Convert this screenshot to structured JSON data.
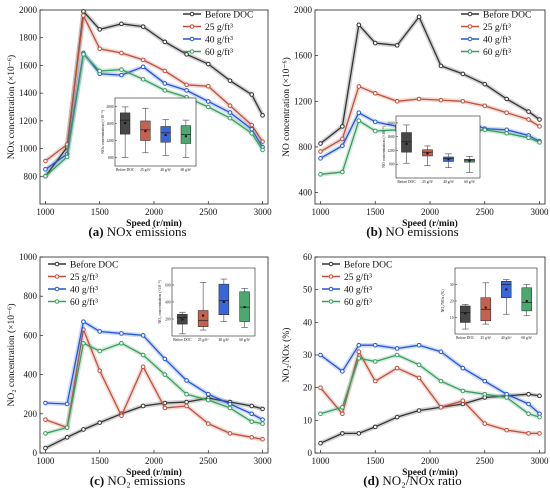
{
  "captions": [
    {
      "letter": "(a)",
      "text": "NOx emissions"
    },
    {
      "letter": "(b)",
      "text": "NO emissions"
    },
    {
      "letter": "(c)",
      "text": "NO₂ emissions"
    },
    {
      "letter": "(d)",
      "text": "NO₂/NOx ratio"
    }
  ],
  "colors": {
    "Before DOC": "#333333",
    "25 g/ft³": "#c0503c",
    "40 g/ft³": "#2457d6",
    "60 g/ft³": "#3a9e5f"
  },
  "chart_data": [
    {
      "type": "line",
      "panel": "a",
      "xlabel": "Speed (r/min)",
      "ylabel": "NOx concentration (×10⁻⁶)",
      "xlim": [
        950,
        3050
      ],
      "ylim": [
        600,
        2000
      ],
      "xticks": [
        1000,
        1500,
        2000,
        2500,
        3000
      ],
      "yticks": [
        800,
        1000,
        1200,
        1400,
        1600,
        1800,
        2000
      ],
      "legend": "top-right",
      "x": [
        1000,
        1200,
        1350,
        1500,
        1700,
        1900,
        2100,
        2300,
        2500,
        2700,
        2900,
        3000
      ],
      "series": [
        {
          "name": "Before DOC",
          "values": [
            800,
            1010,
            1990,
            1860,
            1900,
            1880,
            1770,
            1680,
            1610,
            1490,
            1390,
            1240
          ]
        },
        {
          "name": "25 g/ft³",
          "values": [
            910,
            1030,
            1960,
            1720,
            1690,
            1640,
            1560,
            1460,
            1450,
            1310,
            1170,
            1050
          ]
        },
        {
          "name": "40 g/ft³",
          "values": [
            850,
            960,
            1690,
            1540,
            1530,
            1590,
            1470,
            1420,
            1340,
            1260,
            1140,
            1010
          ]
        },
        {
          "name": "60 g/ft³",
          "values": [
            800,
            940,
            1680,
            1560,
            1570,
            1500,
            1420,
            1370,
            1300,
            1220,
            1110,
            990
          ]
        }
      ],
      "inset": {
        "type": "box",
        "ylabel": "NOx concentration (×10⁻⁶)",
        "ylim": [
          600,
          2200
        ],
        "yticks": [
          800,
          1200,
          1600,
          2000
        ],
        "categories": [
          "Before DOC",
          "25 g/ft³",
          "40 g/ft³",
          "60 g/ft³"
        ],
        "boxes": [
          {
            "min": 800,
            "q1": 1350,
            "median": 1680,
            "mean": 1610,
            "q3": 1850,
            "max": 1990
          },
          {
            "min": 910,
            "q1": 1200,
            "median": 1450,
            "mean": 1420,
            "q3": 1660,
            "max": 1960
          },
          {
            "min": 850,
            "q1": 1160,
            "median": 1380,
            "mean": 1330,
            "q3": 1530,
            "max": 1690
          },
          {
            "min": 800,
            "q1": 1130,
            "median": 1340,
            "mean": 1300,
            "q3": 1550,
            "max": 1680
          }
        ]
      }
    },
    {
      "type": "line",
      "panel": "b",
      "xlabel": "Speed (r/min)",
      "ylabel": "NO concentration (×10⁻⁶)",
      "xlim": [
        950,
        3050
      ],
      "ylim": [
        300,
        2000
      ],
      "xticks": [
        1000,
        1500,
        2000,
        2500,
        3000
      ],
      "yticks": [
        400,
        800,
        1200,
        1600,
        2000
      ],
      "legend": "top-right",
      "x": [
        1000,
        1200,
        1350,
        1500,
        1700,
        1900,
        2100,
        2300,
        2500,
        2700,
        2900,
        3000
      ],
      "series": [
        {
          "name": "Before DOC",
          "values": [
            830,
            980,
            1870,
            1710,
            1690,
            1940,
            1510,
            1440,
            1350,
            1220,
            1110,
            1040
          ]
        },
        {
          "name": "25 g/ft³",
          "values": [
            760,
            870,
            1330,
            1270,
            1200,
            1220,
            1210,
            1200,
            1160,
            1100,
            1040,
            980
          ]
        },
        {
          "name": "40 g/ft³",
          "values": [
            700,
            810,
            1100,
            1020,
            980,
            990,
            1000,
            1040,
            960,
            950,
            900,
            850
          ]
        },
        {
          "name": "60 g/ft³",
          "values": [
            560,
            580,
            1030,
            940,
            950,
            960,
            940,
            930,
            950,
            920,
            880,
            840
          ]
        }
      ],
      "inset": {
        "type": "box",
        "ylabel": "NO concentration (×10⁻⁶)",
        "ylim": [
          400,
          2200
        ],
        "yticks": [
          800,
          1200,
          1600,
          2000
        ],
        "categories": [
          "Before DOC",
          "25 g/ft³",
          "40 g/ft³",
          "60 g/ft³"
        ],
        "boxes": [
          {
            "min": 830,
            "q1": 1150,
            "median": 1450,
            "mean": 1390,
            "q3": 1720,
            "max": 1940
          },
          {
            "min": 760,
            "q1": 1040,
            "median": 1150,
            "mean": 1110,
            "q3": 1220,
            "max": 1330
          },
          {
            "min": 700,
            "q1": 880,
            "median": 960,
            "mean": 940,
            "q3": 1010,
            "max": 1100
          },
          {
            "min": 560,
            "q1": 860,
            "median": 920,
            "mean": 900,
            "q3": 945,
            "max": 1030
          }
        ]
      }
    },
    {
      "type": "line",
      "panel": "c",
      "xlabel": "Speed (r/min)",
      "ylabel": "NO₂ concentration (×10⁻⁶)",
      "xlim": [
        950,
        3050
      ],
      "ylim": [
        0,
        1000
      ],
      "xticks": [
        1000,
        1500,
        2000,
        2500,
        3000
      ],
      "yticks": [
        0,
        200,
        400,
        600,
        800,
        1000
      ],
      "legend": "top-left",
      "x": [
        1000,
        1200,
        1350,
        1500,
        1700,
        1900,
        2100,
        2300,
        2500,
        2700,
        2900,
        3000
      ],
      "series": [
        {
          "name": "Before DOC",
          "values": [
            25,
            80,
            120,
            155,
            200,
            240,
            255,
            260,
            280,
            260,
            240,
            225
          ]
        },
        {
          "name": "25 g/ft³",
          "values": [
            170,
            130,
            630,
            420,
            190,
            440,
            230,
            240,
            150,
            100,
            80,
            70
          ]
        },
        {
          "name": "40 g/ft³",
          "values": [
            255,
            250,
            670,
            620,
            610,
            600,
            480,
            370,
            300,
            250,
            200,
            170
          ]
        },
        {
          "name": "60 g/ft³",
          "values": [
            100,
            130,
            560,
            520,
            560,
            500,
            400,
            300,
            270,
            230,
            160,
            150
          ]
        }
      ],
      "inset": {
        "type": "box",
        "ylabel": "NO₂ concentration (×10⁻⁶)",
        "ylim": [
          0,
          800
        ],
        "yticks": [
          200,
          400,
          600
        ],
        "categories": [
          "Before DOC",
          "25 g/ft³",
          "40 g/ft³",
          "60 g/ft³"
        ],
        "boxes": [
          {
            "min": 25,
            "q1": 140,
            "median": 220,
            "mean": 195,
            "q3": 255,
            "max": 280
          },
          {
            "min": 70,
            "q1": 110,
            "median": 185,
            "mean": 240,
            "q3": 300,
            "max": 630
          },
          {
            "min": 170,
            "q1": 250,
            "median": 420,
            "mean": 400,
            "q3": 610,
            "max": 670
          },
          {
            "min": 100,
            "q1": 170,
            "median": 340,
            "mean": 340,
            "q3": 520,
            "max": 560
          }
        ]
      }
    },
    {
      "type": "line",
      "panel": "d",
      "xlabel": "Speed (r/min)",
      "ylabel": "NO₂/NOx (%)",
      "xlim": [
        950,
        3050
      ],
      "ylim": [
        0,
        60
      ],
      "xticks": [
        1000,
        1500,
        2000,
        2500,
        3000
      ],
      "yticks": [
        0,
        10,
        20,
        30,
        40,
        50,
        60
      ],
      "legend": "top-left",
      "x": [
        1000,
        1200,
        1350,
        1500,
        1700,
        1900,
        2100,
        2300,
        2500,
        2700,
        2900,
        3000
      ],
      "series": [
        {
          "name": "Before DOC",
          "values": [
            3,
            6,
            6,
            8,
            11,
            13,
            14,
            15,
            17,
            17.5,
            18,
            17.5
          ]
        },
        {
          "name": "25 g/ft³",
          "values": [
            20,
            12,
            31,
            22,
            26,
            23,
            14,
            16,
            9,
            7,
            6,
            6
          ]
        },
        {
          "name": "40 g/ft³",
          "values": [
            30,
            25,
            33,
            33,
            32,
            33,
            31,
            26,
            22,
            18,
            15,
            12
          ]
        },
        {
          "name": "60 g/ft³",
          "values": [
            12,
            14,
            29,
            28,
            30,
            27,
            22,
            19,
            18,
            17,
            12,
            11
          ]
        }
      ],
      "inset": {
        "type": "box",
        "ylabel": "NO₂/NOx (%)",
        "ylim": [
          0,
          40
        ],
        "yticks": [
          10,
          20,
          30
        ],
        "categories": [
          "Before DOC",
          "25 g/ft³",
          "40 g/ft³",
          "60 g/ft³"
        ],
        "boxes": [
          {
            "min": 3,
            "q1": 7,
            "median": 13,
            "mean": 12.5,
            "q3": 17,
            "max": 18
          },
          {
            "min": 6,
            "q1": 8,
            "median": 15,
            "mean": 16,
            "q3": 22,
            "max": 31
          },
          {
            "min": 12,
            "q1": 22,
            "median": 30,
            "mean": 27,
            "q3": 32,
            "max": 33
          },
          {
            "min": 11,
            "q1": 14,
            "median": 19,
            "mean": 20,
            "q3": 28,
            "max": 30
          }
        ]
      }
    }
  ]
}
